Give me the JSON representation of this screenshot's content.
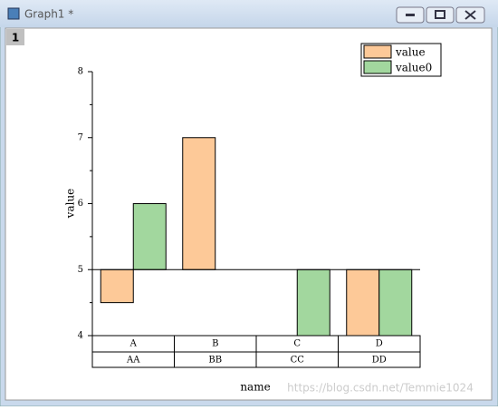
{
  "window": {
    "title": "Graph1 *",
    "layer": "1",
    "watermark": "https://blog.csdn.net/Temmie1024"
  },
  "chart_data": {
    "type": "bar",
    "x_label": "name",
    "y_label": "value",
    "categories": [
      "A",
      "B",
      "C",
      "D"
    ],
    "subcategories": [
      "AA",
      "BB",
      "CC",
      "DD"
    ],
    "series": [
      {
        "name": "value",
        "color": "#fdc998",
        "values": [
          4.5,
          7,
          5,
          4
        ]
      },
      {
        "name": "value0",
        "color": "#a2d79e",
        "values": [
          6,
          5,
          4,
          4
        ]
      }
    ],
    "baseline": 5,
    "ylim": [
      4,
      8
    ],
    "yticks": [
      4,
      5,
      6,
      7,
      8
    ],
    "legend": "top-right"
  }
}
